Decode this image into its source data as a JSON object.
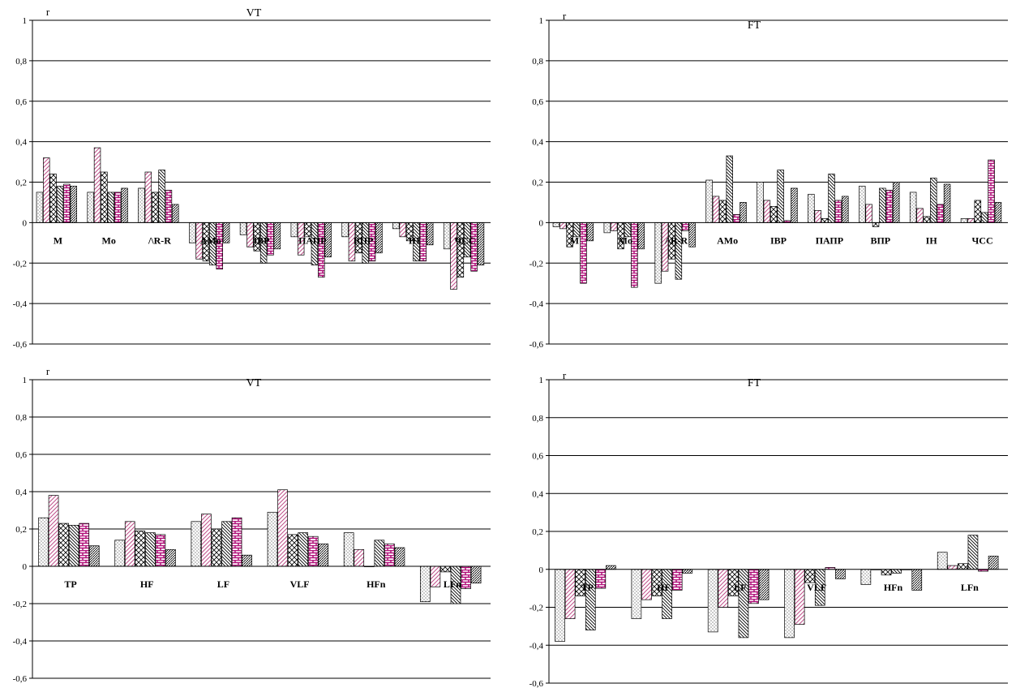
{
  "colors": {
    "axis": "#000000",
    "grid": "#000000",
    "pink": "#c0508a",
    "magenta": "#b1127a"
  },
  "series_patterns": [
    "dots-icon",
    "diagonal-up-pink-icon",
    "crosshatch-icon",
    "diagonal-down-icon",
    "brick-magenta-icon",
    "dense-diagonal-icon"
  ],
  "chart_data": [
    {
      "type": "bar",
      "title": "VT",
      "ylabel": "r",
      "ylim": [
        -0.6,
        1
      ],
      "yticks": [
        "1",
        "0,8",
        "0,6",
        "0,4",
        "0,2",
        "0",
        "-0,2",
        "-0,4",
        "-0,6"
      ],
      "grid": true,
      "categories": [
        "M",
        "Mo",
        "/\\R-R",
        "AMo",
        "IBP",
        "ПАПР",
        "ВПР",
        "ІН",
        "ЧСС"
      ],
      "series": [
        {
          "values": [
            0.15,
            0.15,
            0.17,
            -0.1,
            -0.06,
            -0.07,
            -0.07,
            -0.03,
            -0.13
          ]
        },
        {
          "values": [
            0.32,
            0.37,
            0.25,
            -0.18,
            -0.12,
            -0.16,
            -0.19,
            -0.07,
            -0.33
          ]
        },
        {
          "values": [
            0.24,
            0.25,
            0.15,
            -0.19,
            -0.14,
            -0.07,
            -0.15,
            -0.09,
            -0.27
          ]
        },
        {
          "values": [
            0.18,
            0.15,
            0.26,
            -0.21,
            -0.2,
            -0.21,
            -0.2,
            -0.19,
            -0.17
          ]
        },
        {
          "values": [
            0.19,
            0.15,
            0.16,
            -0.23,
            -0.16,
            -0.27,
            -0.19,
            -0.19,
            -0.24
          ]
        },
        {
          "values": [
            0.18,
            0.17,
            0.09,
            -0.1,
            -0.13,
            -0.17,
            -0.15,
            -0.11,
            -0.21
          ]
        }
      ]
    },
    {
      "type": "bar",
      "title": "FT",
      "ylabel": "r",
      "ylim": [
        -0.6,
        1
      ],
      "yticks": [
        "1",
        "0,8",
        "0,6",
        "0,4",
        "0,2",
        "0",
        "-0,2",
        "-0,4",
        "-0,6"
      ],
      "grid": true,
      "categories": [
        "M",
        "Mo",
        "/\\R-R",
        "AMo",
        "IBP",
        "ПАПР",
        "ВПР",
        "ІН",
        "ЧСС"
      ],
      "series": [
        {
          "values": [
            -0.02,
            -0.05,
            -0.3,
            0.21,
            0.2,
            0.14,
            0.18,
            0.15,
            0.02
          ]
        },
        {
          "values": [
            -0.03,
            -0.04,
            -0.24,
            0.13,
            0.11,
            0.06,
            0.09,
            0.07,
            0.02
          ]
        },
        {
          "values": [
            -0.12,
            -0.13,
            -0.18,
            0.11,
            0.08,
            0.02,
            -0.02,
            0.03,
            0.11
          ]
        },
        {
          "values": [
            -0.07,
            -0.07,
            -0.28,
            0.33,
            0.26,
            0.24,
            0.17,
            0.22,
            0.05
          ]
        },
        {
          "values": [
            -0.3,
            -0.32,
            -0.04,
            0.04,
            0.01,
            0.11,
            0.16,
            0.09,
            0.31
          ]
        },
        {
          "values": [
            -0.09,
            -0.13,
            -0.12,
            0.1,
            0.17,
            0.13,
            0.2,
            0.19,
            0.1
          ]
        }
      ]
    },
    {
      "type": "bar",
      "title": "VT",
      "ylabel": "r",
      "ylim": [
        -0.6,
        1
      ],
      "yticks": [
        "1",
        "0,8",
        "0,6",
        "0,4",
        "0,2",
        "0",
        "-0,2",
        "-0,4",
        "-0,6"
      ],
      "grid": true,
      "categories": [
        "TP",
        "HF",
        "LF",
        "VLF",
        "HFn",
        "LFn"
      ],
      "series": [
        {
          "values": [
            0.26,
            0.14,
            0.24,
            0.29,
            0.18,
            -0.19
          ]
        },
        {
          "values": [
            0.38,
            0.24,
            0.28,
            0.41,
            0.09,
            -0.11
          ]
        },
        {
          "values": [
            0.23,
            0.19,
            0.2,
            0.17,
            0.0,
            -0.03
          ]
        },
        {
          "values": [
            0.22,
            0.18,
            0.24,
            0.18,
            0.14,
            -0.2
          ]
        },
        {
          "values": [
            0.23,
            0.17,
            0.26,
            0.16,
            0.12,
            -0.12
          ]
        },
        {
          "values": [
            0.11,
            0.09,
            0.06,
            0.12,
            0.1,
            -0.09
          ]
        }
      ]
    },
    {
      "type": "bar",
      "title": "FT",
      "ylabel": "r",
      "ylim": [
        -0.6,
        1
      ],
      "yticks": [
        "1",
        "0,8",
        "0,6",
        "0,4",
        "0,2",
        "0",
        "-0,2",
        "-0,4",
        "-0,6"
      ],
      "grid": true,
      "categories": [
        "TP",
        "HF",
        "LF",
        "VLF",
        "HFn",
        "LFn"
      ],
      "series": [
        {
          "values": [
            -0.38,
            -0.26,
            -0.33,
            -0.36,
            -0.08,
            0.09
          ]
        },
        {
          "values": [
            -0.26,
            -0.16,
            -0.2,
            -0.29,
            0.0,
            0.02
          ]
        },
        {
          "values": [
            -0.14,
            -0.14,
            -0.14,
            -0.07,
            -0.03,
            0.03
          ]
        },
        {
          "values": [
            -0.32,
            -0.26,
            -0.36,
            -0.19,
            -0.02,
            0.18
          ]
        },
        {
          "values": [
            -0.1,
            -0.11,
            -0.18,
            0.01,
            0.0,
            -0.01
          ]
        },
        {
          "values": [
            0.02,
            -0.02,
            -0.16,
            -0.05,
            -0.11,
            0.07
          ]
        }
      ]
    }
  ]
}
